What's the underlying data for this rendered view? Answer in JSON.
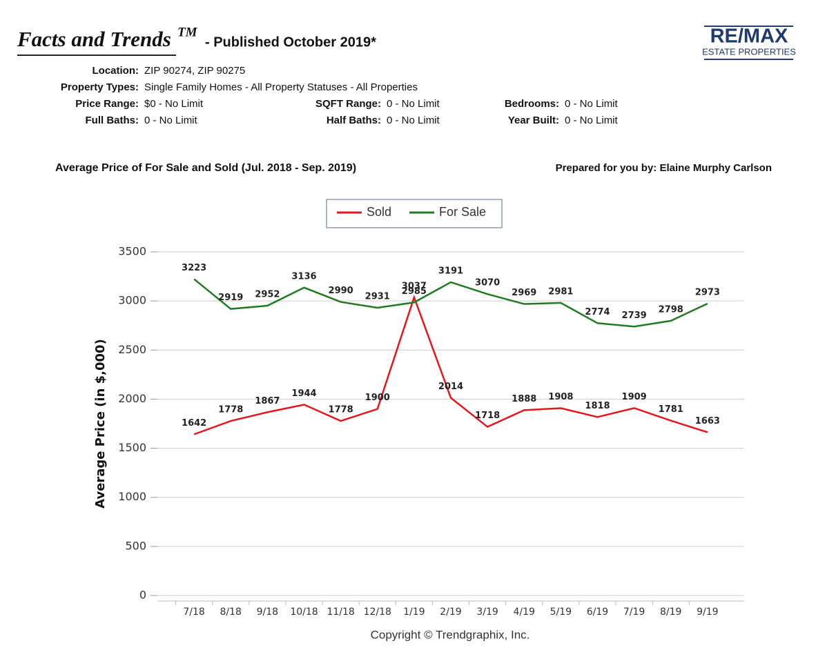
{
  "header": {
    "title": "Facts and Trends",
    "trademark": "TM",
    "published": "- Published October 2019*",
    "logo_main": "RE/MAX",
    "logo_sub": "ESTATE PROPERTIES"
  },
  "filters": [
    [
      {
        "label": "Location:",
        "value": "ZIP 90274, ZIP 90275"
      }
    ],
    [
      {
        "label": "Property Types:",
        "value": "Single Family Homes - All Property Statuses - All Properties"
      }
    ],
    [
      {
        "label": "Price Range:",
        "value": "$0 - No Limit"
      },
      {
        "label": "SQFT Range:",
        "value": "0 - No Limit"
      },
      {
        "label": "Bedrooms:",
        "value": "0 - No Limit"
      }
    ],
    [
      {
        "label": "Full Baths:",
        "value": "0 - No Limit"
      },
      {
        "label": "Half Baths:",
        "value": "0 - No Limit"
      },
      {
        "label": "Year Built:",
        "value": "0 - No Limit"
      }
    ]
  ],
  "chart_heading": "Average Price of For Sale and Sold (Jul. 2018 - Sep. 2019)",
  "prepared_by": "Prepared for you by: Elaine Murphy Carlson",
  "chart_data": {
    "type": "line",
    "ylabel": "Average Price (in $,000)",
    "categories": [
      "7/18",
      "8/18",
      "9/18",
      "10/18",
      "11/18",
      "12/18",
      "1/19",
      "2/19",
      "3/19",
      "4/19",
      "5/19",
      "6/19",
      "7/19",
      "8/19",
      "9/19"
    ],
    "series": [
      {
        "name": "Sold",
        "color": "#e8141b",
        "values": [
          1642,
          1778,
          1867,
          1944,
          1778,
          1900,
          3037,
          2014,
          1718,
          1888,
          1908,
          1818,
          1909,
          1781,
          1663
        ]
      },
      {
        "name": "For Sale",
        "color": "#1e7b1e",
        "values": [
          3223,
          2919,
          2952,
          3136,
          2990,
          2931,
          2985,
          3191,
          3070,
          2969,
          2981,
          2774,
          2739,
          2798,
          2973
        ]
      }
    ],
    "ylim": [
      0,
      3500
    ],
    "yticks": [
      0,
      500,
      1000,
      1500,
      2000,
      2500,
      3000,
      3500
    ],
    "grid": true,
    "legend": "top",
    "footer": "Copyright © Trendgraphix, Inc."
  }
}
